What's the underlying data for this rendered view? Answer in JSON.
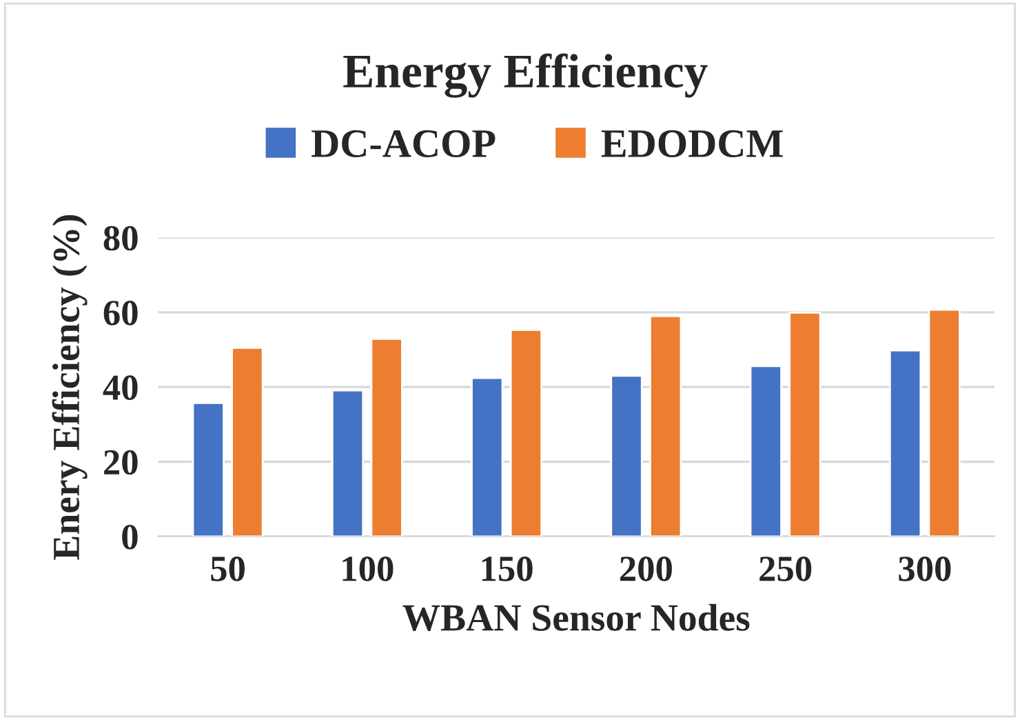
{
  "chart_data": {
    "type": "bar",
    "title": "Energy Efficiency",
    "xlabel": "WBAN Sensor Nodes",
    "ylabel": "Enery Efficiency (%)",
    "categories": [
      "50",
      "100",
      "150",
      "200",
      "250",
      "300"
    ],
    "series": [
      {
        "name": "DC-ACOP",
        "color": "#4472c4",
        "values": [
          35.7,
          39.1,
          42.4,
          43.0,
          45.6,
          49.8
        ]
      },
      {
        "name": "EDODCM",
        "color": "#ed7d31",
        "values": [
          50.5,
          52.9,
          55.3,
          59.0,
          59.9,
          60.7
        ]
      }
    ],
    "ylim": [
      0,
      80
    ],
    "yticks": [
      0,
      20,
      40,
      60,
      80
    ],
    "grid": "y",
    "legend": "top"
  }
}
